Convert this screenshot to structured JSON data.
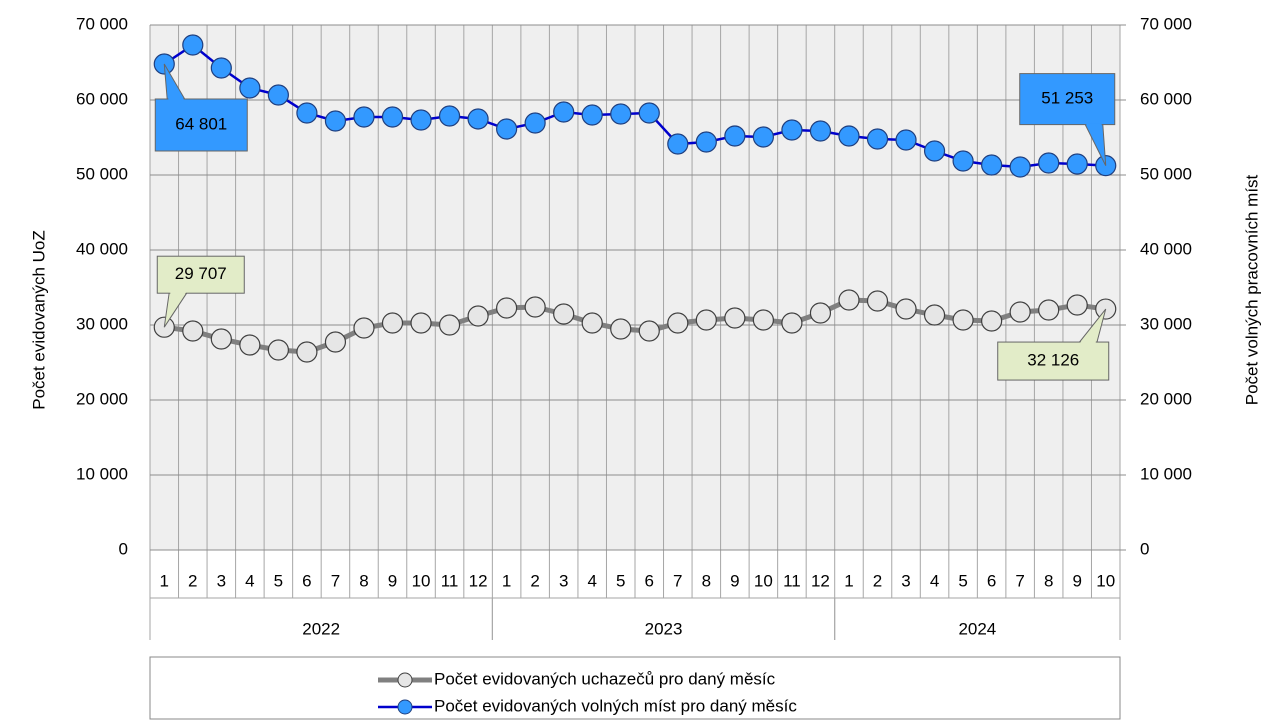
{
  "chart_data": {
    "type": "line",
    "ylabel": "Počet evidovaných UoZ",
    "y2label": "Počet volných pracovních míst",
    "categories": [
      "1",
      "2",
      "3",
      "4",
      "5",
      "6",
      "7",
      "8",
      "9",
      "10",
      "11",
      "12",
      "1",
      "2",
      "3",
      "4",
      "5",
      "6",
      "7",
      "8",
      "9",
      "10",
      "11",
      "12",
      "1",
      "2",
      "3",
      "4",
      "5",
      "6",
      "7",
      "8",
      "9",
      "10"
    ],
    "groups": [
      {
        "name": "2022",
        "span": 12
      },
      {
        "name": "2023",
        "span": 12
      },
      {
        "name": "2024",
        "span": 10
      }
    ],
    "ylim": [
      0,
      70000
    ],
    "yticks": [
      0,
      {
        "value": 10000,
        "label": "10 000"
      },
      {
        "value": 20000,
        "label": "20 000"
      },
      {
        "value": 30000,
        "label": "30 000"
      },
      {
        "value": 40000,
        "label": "40 000"
      },
      {
        "value": 50000,
        "label": "50 000"
      },
      {
        "value": 60000,
        "label": "60 000"
      },
      {
        "value": 70000,
        "label": "70 000"
      }
    ],
    "y2lim": [
      0,
      70000
    ],
    "y2ticks": [
      0,
      {
        "value": 10000,
        "label": "10 000"
      },
      {
        "value": 20000,
        "label": "20 000"
      },
      {
        "value": 30000,
        "label": "30 000"
      },
      {
        "value": 40000,
        "label": "40 000"
      },
      {
        "value": 50000,
        "label": "50 000"
      },
      {
        "value": 60000,
        "label": "60 000"
      },
      {
        "value": 70000,
        "label": "70 000"
      }
    ],
    "grid": true,
    "series": [
      {
        "name": "Počet evidovaných uchazečů pro daný měsíc",
        "color": "#808080",
        "marker_color": "#e6e6e6",
        "values": [
          29707,
          29200,
          28130,
          27330,
          26670,
          26400,
          27730,
          29600,
          30270,
          30270,
          30000,
          31200,
          32270,
          32400,
          31470,
          30270,
          29470,
          29200,
          30270,
          30670,
          30930,
          30670,
          30270,
          31600,
          33330,
          33200,
          32130,
          31330,
          30670,
          30530,
          31730,
          32000,
          32670,
          32126
        ],
        "value_labels": [
          "29 707",
          null,
          null,
          null,
          null,
          null,
          null,
          null,
          null,
          null,
          null,
          null,
          null,
          null,
          null,
          null,
          null,
          null,
          null,
          null,
          null,
          null,
          null,
          null,
          null,
          null,
          null,
          null,
          null,
          null,
          null,
          null,
          null,
          "32 126"
        ],
        "label_color": "#e2ecc8"
      },
      {
        "name": "Počet evidovaných volných míst pro daný měsíc",
        "color": "#0000cc",
        "marker_color": "#3399ff",
        "axis": "y2",
        "values": [
          64801,
          67330,
          64270,
          61600,
          60670,
          58270,
          57200,
          57730,
          57730,
          57330,
          57870,
          57470,
          56130,
          56930,
          58400,
          58000,
          58130,
          58270,
          54130,
          54400,
          55200,
          55070,
          56000,
          55870,
          55200,
          54800,
          54670,
          53200,
          51870,
          51330,
          51070,
          51600,
          51470,
          51253
        ],
        "value_labels": [
          "64 801",
          null,
          null,
          null,
          null,
          null,
          null,
          null,
          null,
          null,
          null,
          null,
          null,
          null,
          null,
          null,
          null,
          null,
          null,
          null,
          null,
          null,
          null,
          null,
          null,
          null,
          null,
          null,
          null,
          null,
          null,
          null,
          null,
          "51 253"
        ],
        "label_color": "#3399ff"
      }
    ]
  }
}
